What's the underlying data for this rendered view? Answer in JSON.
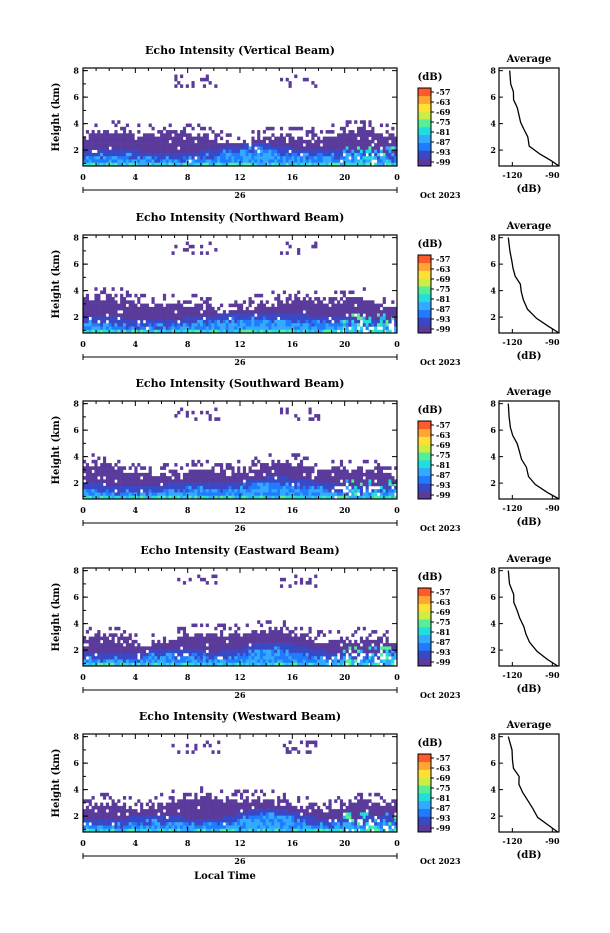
{
  "figure": {
    "xlabel": "Local Time",
    "date_label": "Oct 2023",
    "day_label": "26",
    "colorbar_unit": "(dB)",
    "colorbar_ticks": [
      "-57",
      "-63",
      "-69",
      "-75",
      "-81",
      "-87",
      "-93",
      "-99"
    ],
    "colorbar_colors": [
      "#5a3a9a",
      "#3949c6",
      "#1f7bff",
      "#33aaff",
      "#22dddd",
      "#55ee99",
      "#ccee44",
      "#ffe033",
      "#ffa533",
      "#ff5a2a"
    ],
    "empty_color": "#ffffff"
  },
  "chart_data": [
    {
      "type": "heatmap",
      "title": "Echo Intensity (Vertical Beam)",
      "ylabel": "Height (km)",
      "xticks": [
        "0",
        "4",
        "8",
        "12",
        "16",
        "20",
        "0"
      ],
      "yticks": [
        "2",
        "4",
        "6",
        "8"
      ],
      "xlim": [
        0,
        24
      ],
      "ylim": [
        0.8,
        8.2
      ],
      "avg": {
        "title": "Average",
        "xlabel": "(dB)",
        "xticks": [
          "-120",
          "-90"
        ],
        "xlim": [
          -130,
          -85
        ],
        "yticks": [
          "2",
          "4",
          "6",
          "8"
        ],
        "profile": [
          [
            -85,
            0.8
          ],
          [
            -90,
            1.2
          ],
          [
            -100,
            1.7
          ],
          [
            -107,
            2.3
          ],
          [
            -109,
            3.0
          ],
          [
            -112,
            3.6
          ],
          [
            -113,
            4.1
          ],
          [
            -115,
            4.6
          ],
          [
            -116,
            5.2
          ],
          [
            -118,
            5.8
          ],
          [
            -120,
            6.4
          ],
          [
            -121,
            7.0
          ],
          [
            -122,
            8.0
          ]
        ]
      }
    },
    {
      "type": "heatmap",
      "title": "Echo Intensity (Northward Beam)",
      "ylabel": "Height (km)",
      "xticks": [
        "0",
        "4",
        "8",
        "12",
        "16",
        "20",
        "0"
      ],
      "yticks": [
        "2",
        "4",
        "6",
        "8"
      ],
      "xlim": [
        0,
        24
      ],
      "ylim": [
        0.8,
        8.2
      ],
      "avg": {
        "title": "Average",
        "xlabel": "(dB)",
        "xticks": [
          "-120",
          "-90"
        ],
        "xlim": [
          -130,
          -85
        ],
        "yticks": [
          "2",
          "4",
          "6",
          "8"
        ],
        "profile": [
          [
            -85,
            0.8
          ],
          [
            -92,
            1.3
          ],
          [
            -103,
            1.9
          ],
          [
            -108,
            2.6
          ],
          [
            -111,
            3.3
          ],
          [
            -113,
            3.9
          ],
          [
            -115,
            4.5
          ],
          [
            -117,
            5.1
          ],
          [
            -119,
            5.7
          ],
          [
            -121,
            6.3
          ],
          [
            -122,
            7.0
          ],
          [
            -123,
            8.0
          ]
        ]
      }
    },
    {
      "type": "heatmap",
      "title": "Echo Intensity (Southward Beam)",
      "ylabel": "Height (km)",
      "xticks": [
        "0",
        "4",
        "8",
        "12",
        "16",
        "20",
        "0"
      ],
      "yticks": [
        "2",
        "4",
        "6",
        "8"
      ],
      "xlim": [
        0,
        24
      ],
      "ylim": [
        0.8,
        8.2
      ],
      "avg": {
        "title": "Average",
        "xlabel": "(dB)",
        "xticks": [
          "-120",
          "-90"
        ],
        "xlim": [
          -130,
          -85
        ],
        "yticks": [
          "2",
          "4",
          "6",
          "8"
        ],
        "profile": [
          [
            -85,
            0.8
          ],
          [
            -93,
            1.3
          ],
          [
            -102,
            1.9
          ],
          [
            -107,
            2.5
          ],
          [
            -110,
            3.2
          ],
          [
            -112,
            3.8
          ],
          [
            -115,
            4.4
          ],
          [
            -117,
            5.0
          ],
          [
            -119,
            5.6
          ],
          [
            -121,
            6.2
          ],
          [
            -122,
            7.0
          ],
          [
            -123,
            8.0
          ]
        ]
      }
    },
    {
      "type": "heatmap",
      "title": "Echo Intensity (Eastward Beam)",
      "ylabel": "Height (km)",
      "xticks": [
        "0",
        "4",
        "8",
        "12",
        "16",
        "20",
        "0"
      ],
      "yticks": [
        "2",
        "4",
        "6",
        "8"
      ],
      "xlim": [
        0,
        24
      ],
      "ylim": [
        0.8,
        8.2
      ],
      "avg": {
        "title": "Average",
        "xlabel": "(dB)",
        "xticks": [
          "-120",
          "-90"
        ],
        "xlim": [
          -130,
          -85
        ],
        "yticks": [
          "2",
          "4",
          "6",
          "8"
        ],
        "profile": [
          [
            -86,
            0.8
          ],
          [
            -93,
            1.3
          ],
          [
            -101,
            1.9
          ],
          [
            -106,
            2.6
          ],
          [
            -109,
            3.2
          ],
          [
            -112,
            3.8
          ],
          [
            -114,
            4.4
          ],
          [
            -116,
            5.0
          ],
          [
            -118,
            5.6
          ],
          [
            -120,
            6.2
          ],
          [
            -121,
            7.0
          ],
          [
            -123,
            8.0
          ]
        ]
      }
    },
    {
      "type": "heatmap",
      "title": "Echo Intensity (Westward Beam)",
      "ylabel": "Height (km)",
      "xticks": [
        "0",
        "4",
        "8",
        "12",
        "16",
        "20",
        "0"
      ],
      "yticks": [
        "2",
        "4",
        "6",
        "8"
      ],
      "xlim": [
        0,
        24
      ],
      "ylim": [
        0.8,
        8.2
      ],
      "avg": {
        "title": "Average",
        "xlabel": "(dB)",
        "xticks": [
          "-120",
          "-90"
        ],
        "xlim": [
          -130,
          -85
        ],
        "yticks": [
          "2",
          "4",
          "6",
          "8"
        ],
        "profile": [
          [
            -86,
            0.8
          ],
          [
            -92,
            1.3
          ],
          [
            -101,
            1.9
          ],
          [
            -106,
            2.6
          ],
          [
            -109,
            3.2
          ],
          [
            -112,
            3.8
          ],
          [
            -114,
            4.4
          ],
          [
            -116,
            5.0
          ],
          [
            -118,
            5.6
          ],
          [
            -120,
            6.2
          ],
          [
            -121,
            7.0
          ],
          [
            -123,
            8.0
          ]
        ]
      }
    }
  ]
}
